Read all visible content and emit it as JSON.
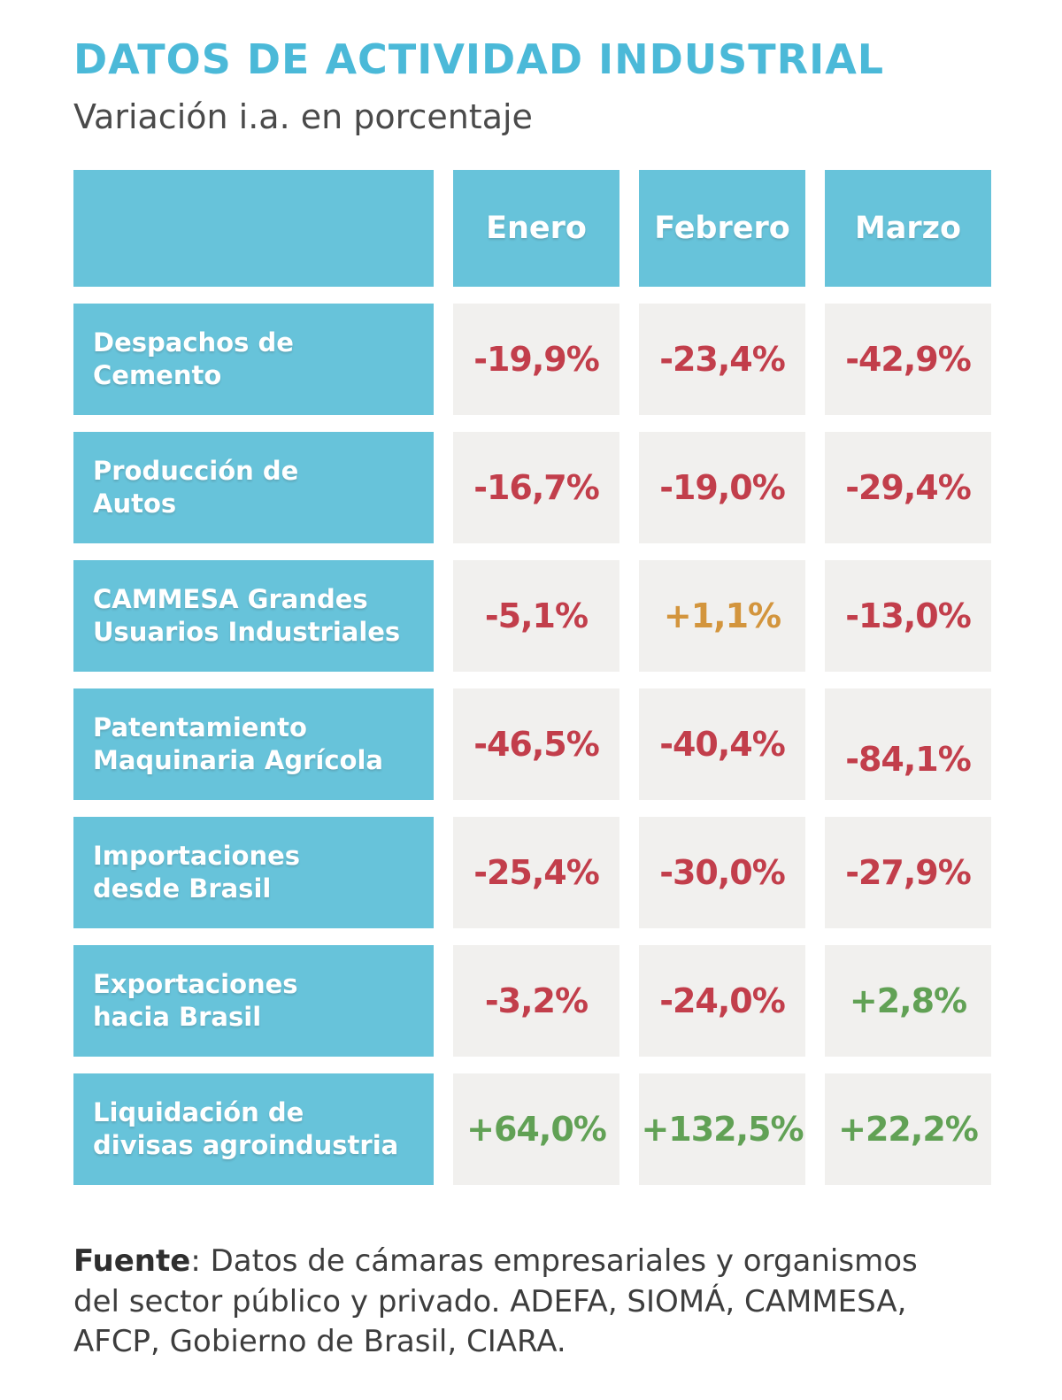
{
  "page": {
    "title": "DATOS DE ACTIVIDAD INDUSTRIAL",
    "subtitle": "Variación i.a. en porcentaje"
  },
  "colors": {
    "accent_blue": "#67c3da",
    "title_cyan": "#4bb9d8",
    "negative_red": "#c23e4b",
    "positive_green": "#61a155",
    "neutral_orange": "#d3953d",
    "value_cell_gray": "#f1f0ee"
  },
  "table": {
    "columns": [
      "Enero",
      "Febrero",
      "Marzo"
    ],
    "rows": [
      {
        "lines": [
          "Despachos de",
          "Cemento"
        ],
        "values": [
          {
            "text": "-19,9%",
            "tone": "neg"
          },
          {
            "text": "-23,4%",
            "tone": "neg"
          },
          {
            "text": "-42,9%",
            "tone": "neg"
          }
        ]
      },
      {
        "lines": [
          "Producción de",
          "Autos"
        ],
        "values": [
          {
            "text": "-16,7%",
            "tone": "neg"
          },
          {
            "text": "-19,0%",
            "tone": "neg"
          },
          {
            "text": "-29,4%",
            "tone": "neg"
          }
        ]
      },
      {
        "lines": [
          "CAMMESA Grandes",
          "Usuarios Industriales"
        ],
        "values": [
          {
            "text": "-5,1%",
            "tone": "neg"
          },
          {
            "text": "+1,1%",
            "tone": "flat"
          },
          {
            "text": "-13,0%",
            "tone": "neg"
          }
        ]
      },
      {
        "lines": [
          "Patentamiento",
          "Maquinaria Agrícola"
        ],
        "values": [
          {
            "text": "-46,5%",
            "tone": "neg"
          },
          {
            "text": "-40,4%",
            "tone": "neg"
          },
          {
            "text": "-84,1%",
            "tone": "neg low"
          }
        ]
      },
      {
        "lines": [
          "Importaciones",
          "desde Brasil"
        ],
        "values": [
          {
            "text": "-25,4%",
            "tone": "neg"
          },
          {
            "text": "-30,0%",
            "tone": "neg"
          },
          {
            "text": "-27,9%",
            "tone": "neg"
          }
        ]
      },
      {
        "lines": [
          "Exportaciones",
          "hacia Brasil"
        ],
        "values": [
          {
            "text": "-3,2%",
            "tone": "neg"
          },
          {
            "text": "-24,0%",
            "tone": "neg"
          },
          {
            "text": "+2,8%",
            "tone": "pos"
          }
        ]
      },
      {
        "lines": [
          "Liquidación de",
          "divisas agroindustria"
        ],
        "values": [
          {
            "text": "+64,0%",
            "tone": "pos"
          },
          {
            "text": "+132,5%",
            "tone": "pos"
          },
          {
            "text": "+22,2%",
            "tone": "pos"
          }
        ]
      }
    ]
  },
  "footer": {
    "bold": "Fuente",
    "line1_rest": ": Datos de cámaras empresariales y organismos",
    "line2": "del sector público y privado. ADEFA, SIOMÁ, CAMMESA,",
    "line3": "AFCP, Gobierno de Brasil, CIARA."
  },
  "chart_data": {
    "type": "table",
    "title": "DATOS DE ACTIVIDAD INDUSTRIAL",
    "subtitle": "Variación i.a. en porcentaje",
    "columns": [
      "Enero",
      "Febrero",
      "Marzo"
    ],
    "rows": [
      {
        "label": "Despachos de Cemento",
        "values_pct": [
          -19.9,
          -23.4,
          -42.9
        ]
      },
      {
        "label": "Producción de Autos",
        "values_pct": [
          -16.7,
          -19.0,
          -29.4
        ]
      },
      {
        "label": "CAMMESA Grandes Usuarios Industriales",
        "values_pct": [
          -5.1,
          1.1,
          -13.0
        ]
      },
      {
        "label": "Patentamiento Maquinaria Agrícola",
        "values_pct": [
          -46.5,
          -40.4,
          -84.1
        ]
      },
      {
        "label": "Importaciones desde Brasil",
        "values_pct": [
          -25.4,
          -30.0,
          -27.9
        ]
      },
      {
        "label": "Exportaciones hacia Brasil",
        "values_pct": [
          -3.2,
          -24.0,
          2.8
        ]
      },
      {
        "label": "Liquidación de divisas agroindustria",
        "values_pct": [
          64.0,
          132.5,
          22.2
        ]
      }
    ],
    "value_color_rule": "negative=red, positive=green, +1,1% highlighted orange",
    "source": "Fuente: Datos de cámaras empresariales y organismos del sector público y privado. ADEFA, SIOMÁ, CAMMESA, AFCP, Gobierno de Brasil, CIARA."
  }
}
